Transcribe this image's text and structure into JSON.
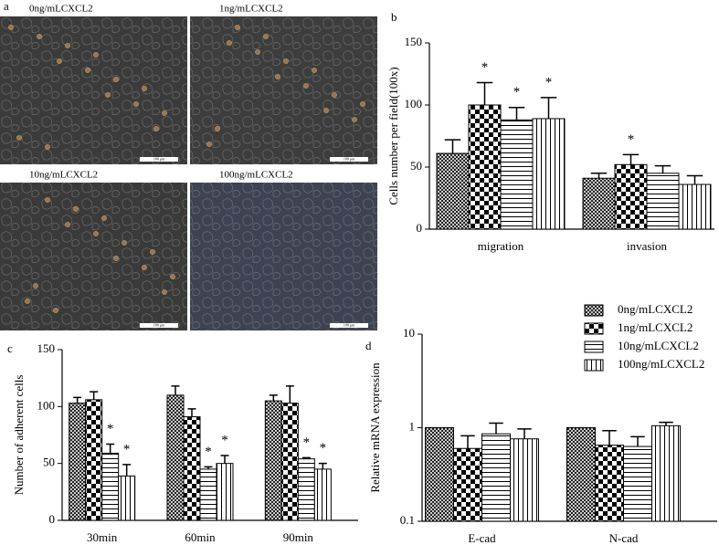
{
  "chart_data": [
    {
      "type": "image-grid",
      "panel_label": "a",
      "panels": [
        {
          "label": "0ng/mLCXCL2"
        },
        {
          "label": "1ng/mLCXCL2"
        },
        {
          "label": "10ng/mLCXCL2"
        },
        {
          "label": "100ng/mLCXCL2"
        }
      ],
      "scale_bar_label": "100 μm"
    },
    {
      "type": "bar",
      "panel_label": "b",
      "ylabel": "Cells number per field(100x)",
      "categories": [
        "migration",
        "invasion"
      ],
      "ylim": [
        0,
        150
      ],
      "yticks": [
        0,
        50,
        100,
        150
      ],
      "series": [
        {
          "pattern": "crosshatch",
          "values": [
            61,
            41
          ],
          "errors": [
            11,
            4
          ]
        },
        {
          "pattern": "checker",
          "values": [
            100,
            52
          ],
          "errors": [
            18,
            8
          ]
        },
        {
          "pattern": "horizontal",
          "values": [
            88,
            45
          ],
          "errors": [
            10,
            6
          ]
        },
        {
          "pattern": "vertical",
          "values": [
            89,
            36
          ],
          "errors": [
            17,
            7
          ]
        }
      ],
      "annotations": [
        {
          "text": "*",
          "series": 1,
          "category": 0
        },
        {
          "text": "*",
          "series": 2,
          "category": 0
        },
        {
          "text": "*",
          "series": 3,
          "category": 0
        },
        {
          "text": "*",
          "series": 1,
          "category": 1
        }
      ]
    },
    {
      "type": "bar",
      "panel_label": "c",
      "ylabel": "Number of adherent cells",
      "categories": [
        "30min",
        "60min",
        "90min"
      ],
      "ylim": [
        0,
        150
      ],
      "yticks": [
        0,
        50,
        100,
        150
      ],
      "series": [
        {
          "pattern": "crosshatch",
          "values": [
            103,
            110,
            105
          ],
          "errors": [
            5,
            8,
            5
          ]
        },
        {
          "pattern": "checker",
          "values": [
            106,
            91,
            103
          ],
          "errors": [
            7,
            7,
            15
          ]
        },
        {
          "pattern": "horizontal",
          "values": [
            59,
            45,
            54
          ],
          "errors": [
            8,
            2,
            1
          ]
        },
        {
          "pattern": "vertical",
          "values": [
            39,
            50,
            45
          ],
          "errors": [
            10,
            7,
            5
          ]
        }
      ],
      "annotations": [
        {
          "text": "*",
          "series": 2,
          "category": 0
        },
        {
          "text": "*",
          "series": 3,
          "category": 0
        },
        {
          "text": "*",
          "series": 2,
          "category": 1
        },
        {
          "text": "*",
          "series": 3,
          "category": 1
        },
        {
          "text": "*",
          "series": 2,
          "category": 2
        },
        {
          "text": "*",
          "series": 3,
          "category": 2
        }
      ]
    },
    {
      "type": "bar",
      "panel_label": "d",
      "ylabel": "Relative mRNA expression",
      "log_scale": true,
      "categories": [
        "E-cad",
        "N-cad"
      ],
      "ylim": [
        0.1,
        10
      ],
      "yticks": [
        0.1,
        1,
        10
      ],
      "series": [
        {
          "name": "0ng/mLCXCL2",
          "pattern": "crosshatch",
          "values": [
            1.0,
            1.0
          ],
          "errors": [
            0,
            0
          ]
        },
        {
          "name": "1ng/mLCXCL2",
          "pattern": "checker",
          "values": [
            0.6,
            0.65
          ],
          "errors": [
            0.22,
            0.28
          ]
        },
        {
          "name": "10ng/mLCXCL2",
          "pattern": "horizontal",
          "values": [
            0.86,
            0.63
          ],
          "errors": [
            0.26,
            0.17
          ]
        },
        {
          "name": "100ng/mLCXCL2",
          "pattern": "vertical",
          "values": [
            0.76,
            1.05
          ],
          "errors": [
            0.21,
            0.09
          ]
        }
      ]
    }
  ]
}
